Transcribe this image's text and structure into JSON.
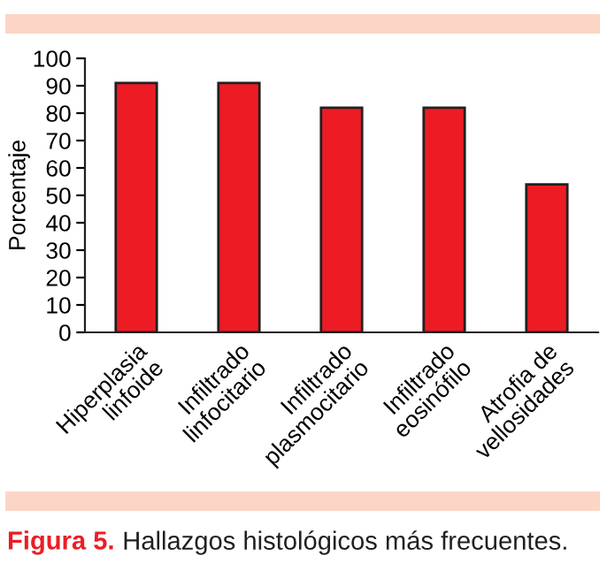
{
  "chart_data": {
    "type": "bar",
    "ylabel": "Porcentaje",
    "categories": [
      "Hiperplasia\nlinfoide",
      "Infiltrado\nlinfocitario",
      "Infiltrado\nplasmocitario",
      "Infiltrado\neosinófilo",
      "Atrofia de\nvellosidades"
    ],
    "values": [
      91,
      91,
      82,
      82,
      54
    ],
    "color": "#ed1c24",
    "ylim": [
      0,
      100
    ],
    "yticks": [
      0,
      10,
      20,
      30,
      40,
      50,
      60,
      70,
      80,
      90,
      100
    ],
    "grid": false,
    "annotations": [
      "Figura 5.",
      "Hallazgos histológicos más frecuentes."
    ]
  }
}
